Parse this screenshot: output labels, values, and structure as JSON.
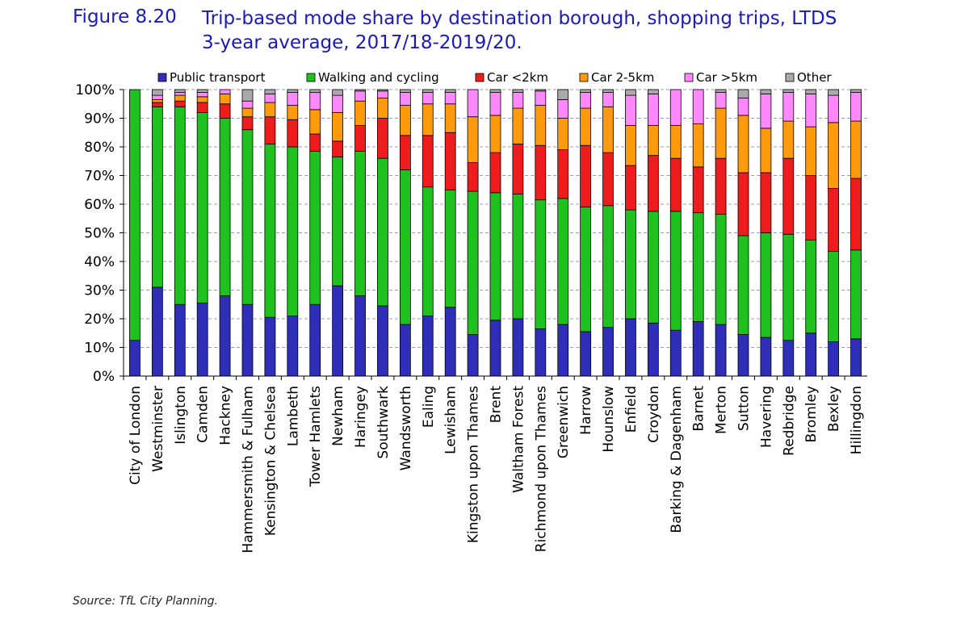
{
  "figure": {
    "label": "Figure 8.20",
    "title_line1": "Trip-based mode share by destination borough, shopping trips, LTDS",
    "title_line2": "3-year average, 2017/18-2019/20.",
    "source": "Source: TfL City Planning."
  },
  "chart_data": {
    "type": "bar",
    "stacked": true,
    "title": "Trip-based mode share by destination borough, shopping trips, LTDS 3-year average, 2017/18-2019/20.",
    "xlabel": "",
    "ylabel": "",
    "ylim": [
      0,
      100
    ],
    "yticks": [
      "0%",
      "10%",
      "20%",
      "30%",
      "40%",
      "50%",
      "60%",
      "70%",
      "80%",
      "90%",
      "100%"
    ],
    "grid": "horizontal dashed",
    "legend_position": "top",
    "categories": [
      "City of London",
      "Westminster",
      "Islington",
      "Camden",
      "Hackney",
      "Hammersmith & Fulham",
      "Kensington & Chelsea",
      "Lambeth",
      "Tower Hamlets",
      "Newham",
      "Haringey",
      "Southwark",
      "Wandsworth",
      "Ealing",
      "Lewisham",
      "Kingston upon Thames",
      "Brent",
      "Waltham Forest",
      "Richmond upon Thames",
      "Greenwich",
      "Harrow",
      "Hounslow",
      "Enfield",
      "Croydon",
      "Barking & Dagenham",
      "Barnet",
      "Merton",
      "Sutton",
      "Havering",
      "Redbridge",
      "Bromley",
      "Bexley",
      "Hillingdon"
    ],
    "series": [
      {
        "name": "Public transport",
        "color": "#2e2eb8",
        "values": [
          12.5,
          31,
          25,
          25.5,
          28,
          25,
          20.5,
          21,
          25,
          31.5,
          28,
          24.5,
          18,
          21,
          24,
          14.5,
          19.5,
          20,
          16.5,
          18,
          15.5,
          17,
          20,
          18.5,
          16,
          19,
          18,
          14.5,
          13.5,
          12.5,
          15,
          12,
          13
        ]
      },
      {
        "name": "Walking and cycling",
        "color": "#1fc11f",
        "values": [
          87.5,
          63,
          69,
          66.5,
          62,
          61,
          60.5,
          59,
          53.5,
          45,
          50.5,
          51.5,
          54,
          45,
          41,
          50,
          44.5,
          43.5,
          45,
          44,
          43.5,
          42.5,
          38,
          39,
          41.5,
          38,
          38.5,
          34.5,
          36.5,
          37,
          32.5,
          31.5,
          31
        ]
      },
      {
        "name": "Car <2km",
        "color": "#ee1c1c",
        "values": [
          0,
          1.5,
          2,
          3.5,
          5,
          4.5,
          9.5,
          9.5,
          6,
          5.5,
          9,
          14,
          12,
          18,
          20,
          10,
          14,
          17.5,
          19,
          17,
          21.5,
          18.5,
          15.5,
          19.5,
          18.5,
          16,
          19.5,
          22,
          21,
          26.5,
          22.5,
          22,
          25
        ]
      },
      {
        "name": "Car 2-5km",
        "color": "#ff9a0d",
        "values": [
          0,
          1,
          2,
          2,
          3.5,
          3,
          5,
          5,
          8.5,
          10,
          8.5,
          7,
          10.5,
          11,
          10,
          16,
          13,
          12.5,
          14,
          11,
          13,
          16,
          14,
          10.5,
          11.5,
          15,
          17.5,
          20,
          15.5,
          13,
          17,
          23,
          20
        ]
      },
      {
        "name": "Car >5km",
        "color": "#ff88ff",
        "values": [
          0,
          1.5,
          1,
          1.5,
          1.5,
          2.5,
          3,
          4.5,
          6,
          6,
          3.5,
          2.5,
          4.5,
          4,
          4,
          9.5,
          8,
          5.5,
          5,
          6.5,
          5.5,
          5,
          10.5,
          11,
          12.5,
          12,
          5.5,
          6,
          12,
          10,
          11.5,
          9.5,
          10
        ]
      },
      {
        "name": "Other",
        "color": "#aaaaaa",
        "values": [
          0,
          2,
          1,
          1,
          0,
          4,
          1.5,
          1,
          1,
          2,
          0.5,
          0.5,
          1,
          1,
          1,
          0,
          1,
          1,
          0.5,
          3.5,
          1,
          1,
          2,
          1.5,
          0,
          0,
          1,
          3,
          1.5,
          1,
          1.5,
          2,
          1
        ]
      }
    ]
  }
}
